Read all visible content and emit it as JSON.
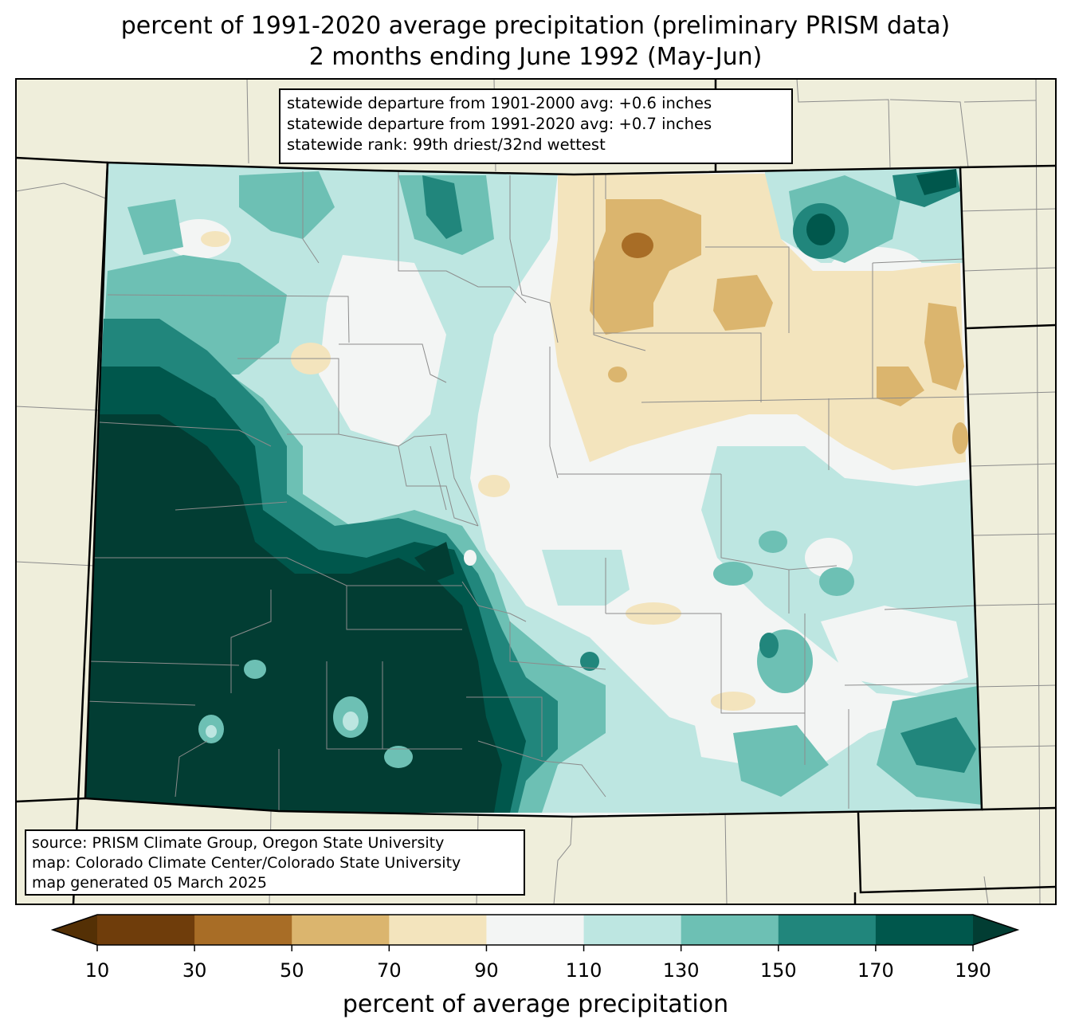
{
  "title": {
    "line1": "percent of 1991-2020 average precipitation (preliminary PRISM data)",
    "line2": "2 months ending June 1992 (May-Jun)"
  },
  "stats": {
    "line1": "statewide departure from 1901-2000 avg: +0.6 inches",
    "line2": "statewide departure from 1991-2020 avg: +0.7 inches",
    "line3": "statewide rank: 99th driest/32nd wettest"
  },
  "credits": {
    "line1": "source: PRISM Climate Group, Oregon State University",
    "line2": "map: Colorado Climate Center/Colorado State University",
    "line3": "map generated 05 March 2025"
  },
  "colorbar": {
    "label": "percent of average precipitation",
    "ticks": [
      "10",
      "30",
      "50",
      "70",
      "90",
      "110",
      "130",
      "150",
      "170",
      "190"
    ],
    "colors": {
      "under": "#543005",
      "bins": [
        "#6f3d0b",
        "#a86d26",
        "#dbb56e",
        "#f3e4bd",
        "#f3f5f4",
        "#bde6e1",
        "#6dc0b4",
        "#21867c",
        "#00574c"
      ],
      "over": "#023d33"
    }
  },
  "colors": {
    "land": "#efeedb",
    "county_lines": "#8c8c8c",
    "state_lines": "#000000"
  }
}
